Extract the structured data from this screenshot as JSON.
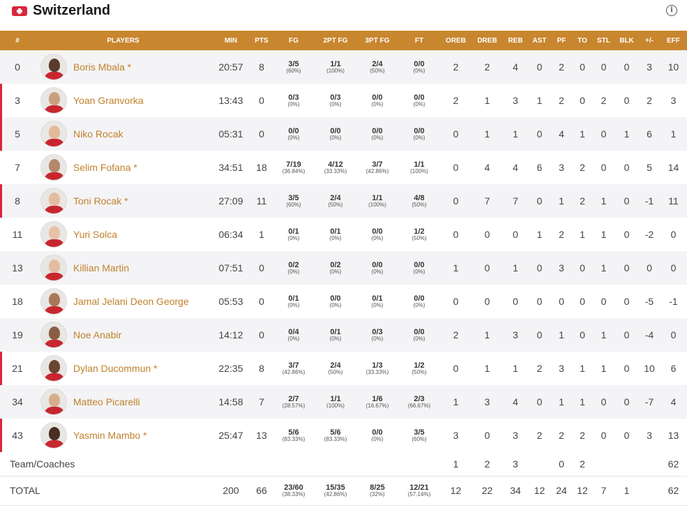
{
  "team": {
    "name": "Switzerland"
  },
  "columns": [
    "#",
    "PLAYERS",
    "MIN",
    "PTS",
    "FG",
    "2PT FG",
    "3PT FG",
    "FT",
    "OREB",
    "DREB",
    "REB",
    "AST",
    "PF",
    "TO",
    "STL",
    "BLK",
    "+/-",
    "EFF"
  ],
  "players": [
    {
      "num": "0",
      "name": "Boris Mbala *",
      "starter": false,
      "skin": "#5a3a2a",
      "min": "20:57",
      "pts": "8",
      "fg": [
        "3/5",
        "(60%)"
      ],
      "p2": [
        "1/1",
        "(100%)"
      ],
      "p3": [
        "2/4",
        "(50%)"
      ],
      "ft": [
        "0/0",
        "(0%)"
      ],
      "oreb": "2",
      "dreb": "2",
      "reb": "4",
      "ast": "0",
      "pf": "2",
      "to": "0",
      "stl": "0",
      "blk": "0",
      "pm": "3",
      "eff": "10"
    },
    {
      "num": "3",
      "name": "Yoan Granvorka",
      "starter": true,
      "skin": "#c9a07e",
      "min": "13:43",
      "pts": "0",
      "fg": [
        "0/3",
        "(0%)"
      ],
      "p2": [
        "0/3",
        "(0%)"
      ],
      "p3": [
        "0/0",
        "(0%)"
      ],
      "ft": [
        "0/0",
        "(0%)"
      ],
      "oreb": "2",
      "dreb": "1",
      "reb": "3",
      "ast": "1",
      "pf": "2",
      "to": "0",
      "stl": "2",
      "blk": "0",
      "pm": "2",
      "eff": "3"
    },
    {
      "num": "5",
      "name": "Niko Rocak",
      "starter": true,
      "skin": "#e2b99a",
      "min": "05:31",
      "pts": "0",
      "fg": [
        "0/0",
        "(0%)"
      ],
      "p2": [
        "0/0",
        "(0%)"
      ],
      "p3": [
        "0/0",
        "(0%)"
      ],
      "ft": [
        "0/0",
        "(0%)"
      ],
      "oreb": "0",
      "dreb": "1",
      "reb": "1",
      "ast": "0",
      "pf": "4",
      "to": "1",
      "stl": "0",
      "blk": "1",
      "pm": "6",
      "eff": "1"
    },
    {
      "num": "7",
      "name": "Selim Fofana *",
      "starter": false,
      "skin": "#b5876a",
      "min": "34:51",
      "pts": "18",
      "fg": [
        "7/19",
        "(36.84%)"
      ],
      "p2": [
        "4/12",
        "(33.33%)"
      ],
      "p3": [
        "3/7",
        "(42.86%)"
      ],
      "ft": [
        "1/1",
        "(100%)"
      ],
      "oreb": "0",
      "dreb": "4",
      "reb": "4",
      "ast": "6",
      "pf": "3",
      "to": "2",
      "stl": "0",
      "blk": "0",
      "pm": "5",
      "eff": "14"
    },
    {
      "num": "8",
      "name": "Toni Rocak *",
      "starter": true,
      "skin": "#e4bda0",
      "min": "27:09",
      "pts": "11",
      "fg": [
        "3/5",
        "(60%)"
      ],
      "p2": [
        "2/4",
        "(50%)"
      ],
      "p3": [
        "1/1",
        "(100%)"
      ],
      "ft": [
        "4/8",
        "(50%)"
      ],
      "oreb": "0",
      "dreb": "7",
      "reb": "7",
      "ast": "0",
      "pf": "1",
      "to": "2",
      "stl": "1",
      "blk": "0",
      "pm": "-1",
      "eff": "11"
    },
    {
      "num": "11",
      "name": "Yuri Solca",
      "starter": false,
      "skin": "#e6c2a6",
      "min": "06:34",
      "pts": "1",
      "fg": [
        "0/1",
        "(0%)"
      ],
      "p2": [
        "0/1",
        "(0%)"
      ],
      "p3": [
        "0/0",
        "(0%)"
      ],
      "ft": [
        "1/2",
        "(50%)"
      ],
      "oreb": "0",
      "dreb": "0",
      "reb": "0",
      "ast": "1",
      "pf": "2",
      "to": "1",
      "stl": "1",
      "blk": "0",
      "pm": "-2",
      "eff": "0"
    },
    {
      "num": "13",
      "name": "Killian Martin",
      "starter": false,
      "skin": "#e3bda0",
      "min": "07:51",
      "pts": "0",
      "fg": [
        "0/2",
        "(0%)"
      ],
      "p2": [
        "0/2",
        "(0%)"
      ],
      "p3": [
        "0/0",
        "(0%)"
      ],
      "ft": [
        "0/0",
        "(0%)"
      ],
      "oreb": "1",
      "dreb": "0",
      "reb": "1",
      "ast": "0",
      "pf": "3",
      "to": "0",
      "stl": "1",
      "blk": "0",
      "pm": "0",
      "eff": "0"
    },
    {
      "num": "18",
      "name": "Jamal Jelani Deon George",
      "starter": false,
      "skin": "#a9785a",
      "min": "05:53",
      "pts": "0",
      "fg": [
        "0/1",
        "(0%)"
      ],
      "p2": [
        "0/0",
        "(0%)"
      ],
      "p3": [
        "0/1",
        "(0%)"
      ],
      "ft": [
        "0/0",
        "(0%)"
      ],
      "oreb": "0",
      "dreb": "0",
      "reb": "0",
      "ast": "0",
      "pf": "0",
      "to": "0",
      "stl": "0",
      "blk": "0",
      "pm": "-5",
      "eff": "-1"
    },
    {
      "num": "19",
      "name": "Noe Anabir",
      "starter": false,
      "skin": "#8a5e44",
      "min": "14:12",
      "pts": "0",
      "fg": [
        "0/4",
        "(0%)"
      ],
      "p2": [
        "0/1",
        "(0%)"
      ],
      "p3": [
        "0/3",
        "(0%)"
      ],
      "ft": [
        "0/0",
        "(0%)"
      ],
      "oreb": "2",
      "dreb": "1",
      "reb": "3",
      "ast": "0",
      "pf": "1",
      "to": "0",
      "stl": "1",
      "blk": "0",
      "pm": "-4",
      "eff": "0"
    },
    {
      "num": "21",
      "name": "Dylan Ducommun *",
      "starter": true,
      "skin": "#6b4530",
      "min": "22:35",
      "pts": "8",
      "fg": [
        "3/7",
        "(42.86%)"
      ],
      "p2": [
        "2/4",
        "(50%)"
      ],
      "p3": [
        "1/3",
        "(33.33%)"
      ],
      "ft": [
        "1/2",
        "(50%)"
      ],
      "oreb": "0",
      "dreb": "1",
      "reb": "1",
      "ast": "2",
      "pf": "3",
      "to": "1",
      "stl": "1",
      "blk": "0",
      "pm": "10",
      "eff": "6"
    },
    {
      "num": "34",
      "name": "Matteo Picarelli",
      "starter": false,
      "skin": "#d6ad8c",
      "min": "14:58",
      "pts": "7",
      "fg": [
        "2/7",
        "(28.57%)"
      ],
      "p2": [
        "1/1",
        "(100%)"
      ],
      "p3": [
        "1/6",
        "(16.67%)"
      ],
      "ft": [
        "2/3",
        "(66.67%)"
      ],
      "oreb": "1",
      "dreb": "3",
      "reb": "4",
      "ast": "0",
      "pf": "1",
      "to": "1",
      "stl": "0",
      "blk": "0",
      "pm": "-7",
      "eff": "4"
    },
    {
      "num": "43",
      "name": "Yasmin Mambo *",
      "starter": true,
      "skin": "#4a2e22",
      "min": "25:47",
      "pts": "13",
      "fg": [
        "5/6",
        "(83.33%)"
      ],
      "p2": [
        "5/6",
        "(83.33%)"
      ],
      "p3": [
        "0/0",
        "(0%)"
      ],
      "ft": [
        "3/5",
        "(60%)"
      ],
      "oreb": "3",
      "dreb": "0",
      "reb": "3",
      "ast": "2",
      "pf": "2",
      "to": "2",
      "stl": "0",
      "blk": "0",
      "pm": "3",
      "eff": "13"
    }
  ],
  "team_coaches": {
    "label": "Team/Coaches",
    "oreb": "1",
    "dreb": "2",
    "reb": "3",
    "ast": "",
    "pf": "0",
    "to": "2",
    "stl": "",
    "blk": "",
    "pm": "",
    "eff": "62"
  },
  "total": {
    "label": "TOTAL",
    "min": "200",
    "pts": "66",
    "fg": [
      "23/60",
      "(38.33%)"
    ],
    "p2": [
      "15/35",
      "(42.86%)"
    ],
    "p3": [
      "8/25",
      "(32%)"
    ],
    "ft": [
      "12/21",
      "(57.14%)"
    ],
    "oreb": "12",
    "dreb": "22",
    "reb": "34",
    "ast": "12",
    "pf": "24",
    "to": "12",
    "stl": "7",
    "blk": "1",
    "pm": "",
    "eff": "62"
  },
  "colors": {
    "header_bg": "#c8862e",
    "player_name": "#c0812b",
    "starter_marker": "#d9263d",
    "jersey": "#c8262f"
  }
}
